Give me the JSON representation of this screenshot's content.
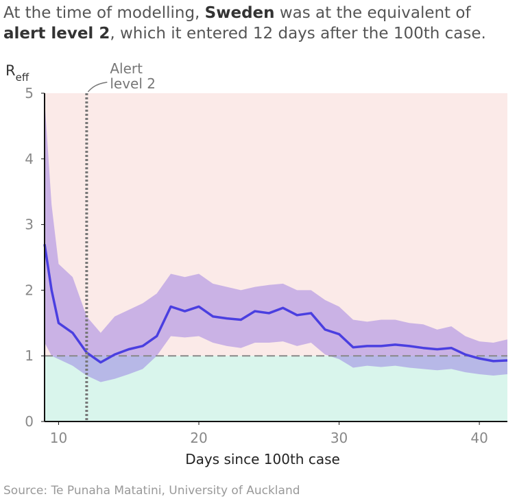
{
  "chart_data": {
    "type": "line",
    "title_lines": [
      [
        {
          "text": "At the time of modelling, "
        },
        {
          "text": "Sweden",
          "bold": true
        },
        {
          "text": " was at the equivalent of"
        }
      ],
      [
        {
          "text": "alert level 2",
          "bold": true
        },
        {
          "text": ", which it entered 12 days after the 100th case."
        }
      ]
    ],
    "ylabel": "R",
    "ylabel_sub": "eff",
    "xlabel": "Days since 100th case",
    "source": "Source: Te Punaha Matatini, University of Auckland",
    "xlim": [
      9,
      42
    ],
    "ylim": [
      0,
      5
    ],
    "xticks": [
      10,
      20,
      30,
      40
    ],
    "yticks": [
      0,
      1,
      2,
      3,
      4,
      5
    ],
    "threshold": 1,
    "threshold_color": "#888888",
    "regions": {
      "above": "#fbeae8",
      "below": "#d9f5ec"
    },
    "annotation": {
      "x": 12,
      "lines": [
        "Alert",
        "level 2"
      ],
      "color": "#777777"
    },
    "x": [
      9,
      9.5,
      10,
      11,
      12,
      13,
      14,
      15,
      16,
      17,
      18,
      19,
      20,
      21,
      22,
      23,
      24,
      25,
      26,
      27,
      28,
      29,
      30,
      31,
      32,
      33,
      34,
      35,
      36,
      37,
      38,
      39,
      40,
      41,
      42
    ],
    "line": {
      "color": "#4a3fe0",
      "values": [
        2.7,
        2.0,
        1.5,
        1.35,
        1.05,
        0.9,
        1.02,
        1.1,
        1.15,
        1.3,
        1.75,
        1.68,
        1.75,
        1.6,
        1.57,
        1.55,
        1.68,
        1.65,
        1.73,
        1.62,
        1.65,
        1.4,
        1.33,
        1.13,
        1.15,
        1.15,
        1.17,
        1.15,
        1.12,
        1.1,
        1.12,
        1.02,
        0.96,
        0.92,
        0.93
      ]
    },
    "band": {
      "color": "#8f6fe3",
      "upper": [
        4.9,
        3.3,
        2.4,
        2.2,
        1.6,
        1.35,
        1.6,
        1.7,
        1.8,
        1.95,
        2.25,
        2.2,
        2.25,
        2.1,
        2.05,
        2.0,
        2.05,
        2.08,
        2.1,
        2.0,
        2.0,
        1.85,
        1.75,
        1.55,
        1.52,
        1.55,
        1.55,
        1.5,
        1.48,
        1.4,
        1.45,
        1.3,
        1.22,
        1.2,
        1.25
      ],
      "lower": [
        1.2,
        1.0,
        0.95,
        0.85,
        0.7,
        0.6,
        0.65,
        0.72,
        0.8,
        1.0,
        1.3,
        1.28,
        1.3,
        1.2,
        1.15,
        1.12,
        1.2,
        1.2,
        1.22,
        1.15,
        1.2,
        1.02,
        0.95,
        0.82,
        0.85,
        0.83,
        0.85,
        0.82,
        0.8,
        0.78,
        0.8,
        0.75,
        0.72,
        0.7,
        0.72
      ]
    }
  }
}
